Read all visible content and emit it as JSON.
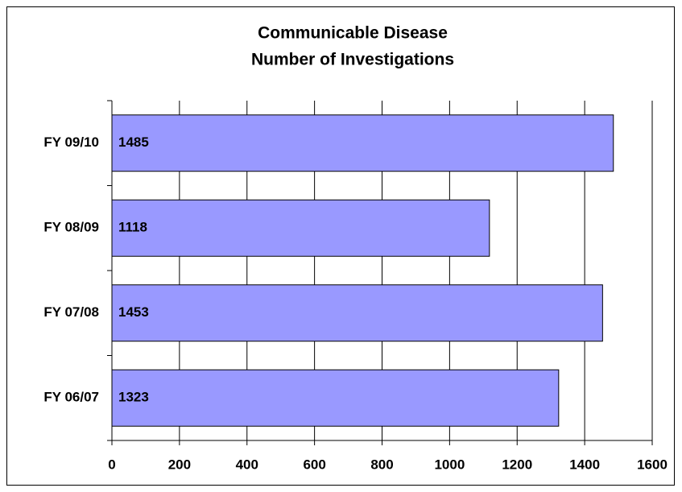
{
  "chart_data": {
    "type": "bar",
    "orientation": "horizontal",
    "title": "Communicable Disease",
    "subtitle": "Number of Investigations",
    "categories": [
      "FY 06/07",
      "FY 07/08",
      "FY 08/09",
      "FY 09/10"
    ],
    "values": [
      1323,
      1453,
      1118,
      1485
    ],
    "color": "#9999ff",
    "xlim": [
      0,
      1600
    ],
    "xticks": [
      0,
      200,
      400,
      600,
      800,
      1000,
      1200,
      1400,
      1600
    ],
    "grid": true
  }
}
